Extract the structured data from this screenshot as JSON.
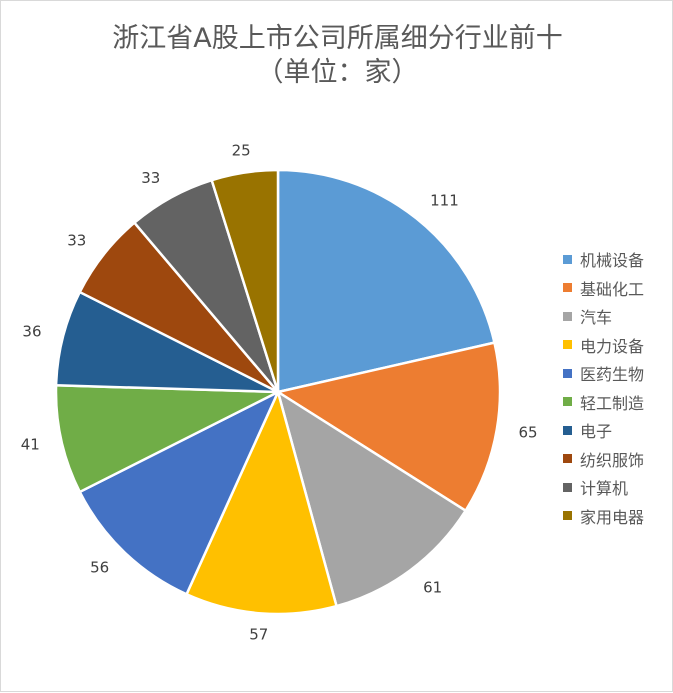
{
  "chart_data": {
    "type": "pie",
    "title": "浙江省A股上市公司所属细分行业前十",
    "subtitle": "（单位：家）",
    "categories": [
      "机械设备",
      "基础化工",
      "汽车",
      "电力设备",
      "医药生物",
      "轻工制造",
      "电子",
      "纺织服饰",
      "计算机",
      "家用电器"
    ],
    "values": [
      111,
      65,
      61,
      57,
      56,
      41,
      36,
      33,
      33,
      25
    ],
    "colors": [
      "#5b9bd5",
      "#ed7d31",
      "#a5a5a5",
      "#ffc000",
      "#4472c4",
      "#70ad47",
      "#255e91",
      "#9e480e",
      "#636363",
      "#997300"
    ],
    "legend_position": "right",
    "data_labels": "outside"
  }
}
